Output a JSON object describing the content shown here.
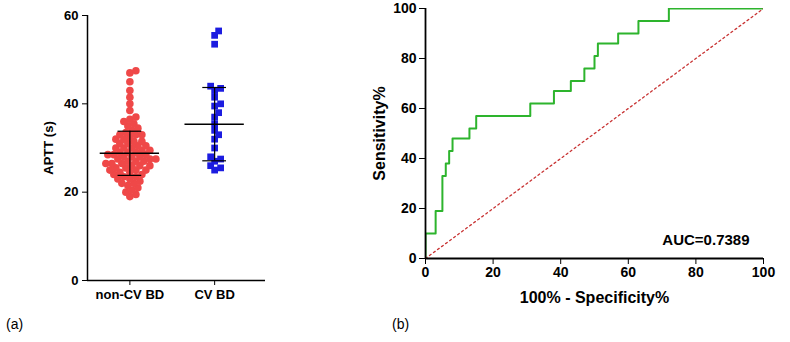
{
  "chart_data": [
    {
      "type": "scatter",
      "panel_label": "(a)",
      "y_label": "APTT (s)",
      "ylim": [
        0,
        60
      ],
      "yticks": [
        0,
        20,
        40,
        60
      ],
      "series": [
        {
          "name": "non-CV BD",
          "color": "#ef4848",
          "marker": "circle",
          "values": [
            47.5,
            47,
            45,
            43,
            41.5,
            40,
            38.5,
            37,
            36.5,
            35,
            34.5,
            34,
            33.5,
            33,
            33,
            32.5,
            32,
            32,
            31.5,
            31.5,
            31,
            31,
            30.5,
            30.5,
            30,
            30,
            30,
            29.5,
            29.5,
            29,
            29,
            29,
            28.5,
            28.5,
            28.5,
            28,
            28,
            28,
            27.5,
            27.5,
            27.5,
            27,
            27,
            27,
            26.5,
            26.5,
            26.5,
            26,
            26,
            26,
            25.5,
            25.5,
            25,
            25,
            25,
            24.5,
            24.5,
            24,
            24,
            23.5,
            23.5,
            23,
            23,
            22.5,
            22,
            22,
            21.5,
            21,
            20.5,
            20,
            19.5,
            19,
            33,
            35.5,
            36
          ],
          "mean": 28.8,
          "sd": 5.0
        },
        {
          "name": "CV BD",
          "color": "#1c1ce0",
          "marker": "square",
          "values": [
            56.5,
            55.5,
            53.5,
            44,
            43.5,
            43,
            41.5,
            40,
            39.5,
            38,
            37,
            35.5,
            34,
            33,
            32,
            30,
            28,
            27.5,
            27,
            26,
            25.5,
            25
          ],
          "mean": 35.4,
          "sd": 8.3
        }
      ]
    },
    {
      "type": "line",
      "panel_label": "(b)",
      "x_label": "100% - Specificity%",
      "y_label": "Sensitivity%",
      "xlim": [
        0,
        100
      ],
      "ylim": [
        0,
        100
      ],
      "xticks": [
        0,
        20,
        40,
        60,
        80,
        100
      ],
      "yticks": [
        0,
        20,
        40,
        60,
        80,
        100
      ],
      "annotation": "AUC=0.7389",
      "series": [
        {
          "color": "#2db42d",
          "line_style": "solid",
          "x": [
            0,
            0,
            3,
            3,
            5,
            5,
            6,
            6,
            7,
            7,
            8,
            8,
            13,
            13,
            15,
            15,
            31,
            31,
            38,
            38,
            43,
            43,
            47,
            47,
            50,
            50,
            51,
            51,
            57,
            57,
            63,
            63,
            72,
            72,
            76,
            100
          ],
          "values": [
            0,
            10,
            10,
            19,
            19,
            33,
            33,
            38,
            38,
            43,
            43,
            48,
            48,
            52,
            52,
            57,
            57,
            62,
            62,
            67,
            67,
            71,
            71,
            76,
            76,
            81,
            81,
            86,
            86,
            90,
            90,
            95,
            95,
            100,
            100,
            100
          ]
        },
        {
          "color": "#c83232",
          "line_style": "dotted",
          "x": [
            0,
            100
          ],
          "values": [
            0,
            100
          ]
        }
      ]
    }
  ]
}
